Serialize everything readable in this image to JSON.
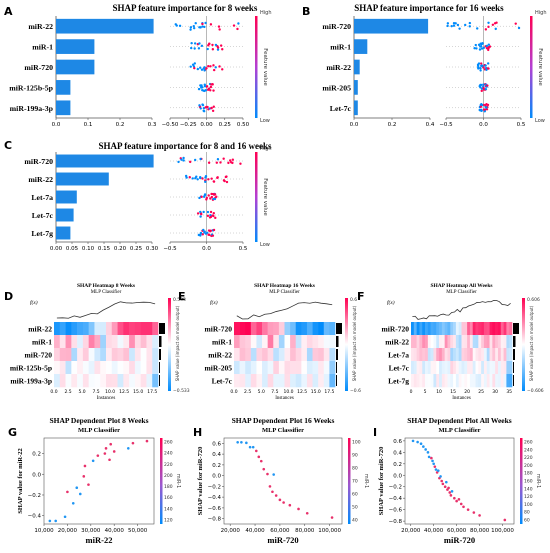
{
  "colors": {
    "bar": "#1E88E5",
    "high": "#FF0052",
    "mid": "#B43FD3",
    "low": "#008BFB",
    "scatter_pink": "#E8316B",
    "scatter_blue": "#2196F3"
  },
  "chart_data": [
    {
      "id": "A",
      "type": "bar",
      "panel_letter": "A",
      "title": "SHAP feature importance for 8 weeks",
      "categories": [
        "miR-22",
        "miR-1",
        "miR-720",
        "miR-125b-5p",
        "miR-199a-3p"
      ],
      "values": [
        0.305,
        0.12,
        0.12,
        0.045,
        0.045
      ],
      "xlim": [
        0,
        0.3
      ],
      "xticks": [
        "0.0",
        "0.1",
        "0.2",
        "0.3"
      ],
      "beeswarm": {
        "xlim": [
          -0.5,
          0.5
        ],
        "xticks": [
          "−0.50",
          "−0.25",
          "0.00",
          "0.25",
          "0.50"
        ]
      },
      "colorbar": {
        "high": "High",
        "low": "Low",
        "label": "Feature value"
      }
    },
    {
      "id": "B",
      "type": "bar",
      "panel_letter": "B",
      "title": "SHAP feature importance for 16 weeks",
      "categories": [
        "miR-720",
        "miR-1",
        "miR-22",
        "miR-205",
        "Let-7c"
      ],
      "values": [
        0.39,
        0.07,
        0.03,
        0.02,
        0.02
      ],
      "xlim": [
        0,
        0.4
      ],
      "xticks": [
        "0.0",
        "0.2",
        "0.4"
      ],
      "beeswarm": {
        "xlim": [
          -0.5,
          0.5
        ],
        "xticks": [
          "−0.5",
          "0.0",
          "0.5"
        ]
      },
      "colorbar": {
        "high": "High",
        "low": "Low",
        "label": "Feature value"
      }
    },
    {
      "id": "C",
      "type": "bar",
      "panel_letter": "C",
      "title": "SHAP feature importance for 8 and 16 weeks",
      "categories": [
        "miR-720",
        "miR-22",
        "Let-7a",
        "Let-7c",
        "Let-7g"
      ],
      "values": [
        0.305,
        0.165,
        0.065,
        0.055,
        0.045
      ],
      "xlim": [
        0,
        0.3
      ],
      "xticks": [
        "0.00",
        "0.05",
        "0.10",
        "0.15",
        "0.20",
        "0.25",
        "0.30"
      ],
      "beeswarm": {
        "xlim": [
          -0.5,
          0.5
        ],
        "xticks": [
          "−0.5",
          "0.0",
          "0.5"
        ]
      },
      "colorbar": {
        "high": "High",
        "low": "Low",
        "label": "Feature value"
      }
    },
    {
      "id": "D",
      "type": "heatmap",
      "panel_letter": "D",
      "title": "SHAP Heatmap 8 Weeks",
      "subtitle": "MLP Classifier",
      "fx_label": "f(x)",
      "rows": [
        "miR-22",
        "miR-1",
        "miR-720",
        "miR-125b-5p",
        "miR-199a-3p"
      ],
      "xlabel": "Instances",
      "xticks": [
        "0.0",
        "2.5",
        "5.0",
        "7.5",
        "10.0",
        "12.5",
        "15.0",
        "17.5"
      ],
      "cbar_max": "0.533",
      "cbar_min": "−0.533",
      "cbar_label": "SHAP value (impact on model output)"
    },
    {
      "id": "E",
      "type": "heatmap",
      "panel_letter": "E",
      "title": "SHAP Heatmap 16 Weeks",
      "subtitle": "MLP Classifier",
      "fx_label": "f(x)",
      "rows": [
        "miR-720",
        "miR-1",
        "miR-22",
        "miR-205",
        "Let-7c"
      ],
      "xlabel": "Instances",
      "xticks": [
        "0.0",
        "2.5",
        "5.0",
        "7.5",
        "10.0",
        "12.5",
        "15.0",
        "17.5"
      ],
      "cbar_max": "0.6",
      "cbar_min": "−0.6",
      "cbar_label": "SHAP value (impact on model output)"
    },
    {
      "id": "F",
      "type": "heatmap",
      "panel_letter": "F",
      "title": "SHAP Heatmap All Weeks",
      "subtitle": "MLP Classifier",
      "fx_label": "f(x)",
      "rows": [
        "miR-720",
        "miR-22",
        "Let-7a",
        "Let-7c",
        "Let-7g"
      ],
      "xlabel": "Instances",
      "xticks": [
        "0",
        "5",
        "10",
        "15",
        "20",
        "25",
        "30",
        "35"
      ],
      "cbar_max": "0.606",
      "cbar_min": "−0.606",
      "cbar_label": "SHAP value (impact on model output)"
    },
    {
      "id": "G",
      "type": "scatter",
      "panel_letter": "G",
      "title": "SHAP Dependent Plot 8 Weeks",
      "subtitle": "MLP Classifier",
      "xlabel": "miR-22",
      "ylabel": "SHAP value for miR-22",
      "xlim": [
        10000,
        57000
      ],
      "ylim": [
        -0.48,
        0.35
      ],
      "xtick_values": [
        10000,
        20000,
        30000,
        40000,
        50000
      ],
      "xticks": [
        "10,000",
        "20,000",
        "30,000",
        "40,000",
        "50,000"
      ],
      "ytick_values": [
        -0.4,
        -0.2,
        0.0,
        0.2
      ],
      "yticks": [
        "−0.4",
        "−0.2",
        "0.0",
        "0.2"
      ],
      "cbar_label": "miR-1",
      "cbar_range": [
        120,
        260
      ],
      "cbar_ticks": [
        "260",
        "240",
        "220",
        "200",
        "180",
        "160",
        "140",
        "120"
      ],
      "points": [
        {
          "x": 12500,
          "y": -0.45,
          "c": "blue"
        },
        {
          "x": 15000,
          "y": -0.45,
          "c": "blue"
        },
        {
          "x": 19000,
          "y": -0.41,
          "c": "blue"
        },
        {
          "x": 20000,
          "y": -0.17,
          "c": "pink"
        },
        {
          "x": 22500,
          "y": -0.28,
          "c": "blue"
        },
        {
          "x": 24000,
          "y": -0.13,
          "c": "blue"
        },
        {
          "x": 25500,
          "y": -0.19,
          "c": "blue"
        },
        {
          "x": 27000,
          "y": -0.02,
          "c": "pink"
        },
        {
          "x": 27500,
          "y": 0.08,
          "c": "pink"
        },
        {
          "x": 29000,
          "y": -0.1,
          "c": "pink"
        },
        {
          "x": 31000,
          "y": 0.13,
          "c": "blue"
        },
        {
          "x": 33000,
          "y": 0.18,
          "c": "pink"
        },
        {
          "x": 36000,
          "y": 0.2,
          "c": "pink"
        },
        {
          "x": 36500,
          "y": 0.25,
          "c": "pink"
        },
        {
          "x": 38000,
          "y": 0.14,
          "c": "pink"
        },
        {
          "x": 38500,
          "y": 0.29,
          "c": "pink"
        },
        {
          "x": 40000,
          "y": 0.22,
          "c": "pink"
        },
        {
          "x": 46000,
          "y": 0.25,
          "c": "blue"
        },
        {
          "x": 48000,
          "y": 0.3,
          "c": "pink"
        },
        {
          "x": 54000,
          "y": 0.32,
          "c": "pink"
        }
      ]
    },
    {
      "id": "H",
      "type": "scatter",
      "panel_letter": "H",
      "title": "SHAP Dependent Plot 16 Weeks",
      "subtitle": "MLP Classifier",
      "xlabel": "miR-720",
      "ylabel": "SHAP value for miR-720",
      "xlim": [
        15000,
        110000
      ],
      "ylim": [
        -0.9,
        0.7
      ],
      "xtick_values": [
        20000,
        40000,
        60000,
        80000,
        100000
      ],
      "xticks": [
        "20,000",
        "40,000",
        "60,000",
        "80,000",
        "100,000"
      ],
      "ytick_values": [
        -0.8,
        -0.6,
        -0.4,
        -0.2,
        0.0,
        0.2,
        0.4,
        0.6
      ],
      "yticks": [
        "−0.8",
        "−0.6",
        "−0.4",
        "−0.2",
        "0.0",
        "0.2",
        "0.4",
        "0.6"
      ],
      "cbar_label": "miR-1",
      "cbar_range": [
        40,
        100
      ],
      "cbar_ticks": [
        "100",
        "90",
        "80",
        "70",
        "60",
        "50",
        "40"
      ],
      "points": [
        {
          "x": 26000,
          "y": 0.62,
          "c": "blue"
        },
        {
          "x": 29000,
          "y": 0.62,
          "c": "blue"
        },
        {
          "x": 33000,
          "y": 0.61,
          "c": "blue"
        },
        {
          "x": 36000,
          "y": 0.53,
          "c": "blue"
        },
        {
          "x": 38500,
          "y": 0.53,
          "c": "blue"
        },
        {
          "x": 41000,
          "y": 0.46,
          "c": "pink"
        },
        {
          "x": 43000,
          "y": 0.35,
          "c": "pink"
        },
        {
          "x": 45000,
          "y": 0.27,
          "c": "pink"
        },
        {
          "x": 47000,
          "y": 0.12,
          "c": "pink"
        },
        {
          "x": 50000,
          "y": 0.03,
          "c": "pink"
        },
        {
          "x": 52000,
          "y": -0.2,
          "c": "pink"
        },
        {
          "x": 54000,
          "y": -0.3,
          "c": "pink"
        },
        {
          "x": 55000,
          "y": 0.02,
          "c": "blue"
        },
        {
          "x": 57000,
          "y": -0.37,
          "c": "pink"
        },
        {
          "x": 60000,
          "y": -0.45,
          "c": "pink"
        },
        {
          "x": 63000,
          "y": -0.5,
          "c": "pink"
        },
        {
          "x": 68000,
          "y": -0.55,
          "c": "pink"
        },
        {
          "x": 75000,
          "y": -0.62,
          "c": "pink"
        },
        {
          "x": 82000,
          "y": -0.7,
          "c": "pink"
        },
        {
          "x": 102000,
          "y": -0.78,
          "c": "pink"
        }
      ]
    },
    {
      "id": "I",
      "type": "scatter",
      "panel_letter": "I",
      "title": "SHAP Dependent Plot All Weeks",
      "subtitle": "MLP Classifier",
      "xlabel": "miR-720",
      "ylabel": "SHAP value for miR-720",
      "xlim": [
        15000,
        110000
      ],
      "ylim": [
        -0.85,
        0.65
      ],
      "xtick_values": [
        20000,
        40000,
        60000,
        80000,
        100000
      ],
      "xticks": [
        "20,000",
        "40,000",
        "60,000",
        "80,000",
        "100,000"
      ],
      "ytick_values": [
        -0.8,
        -0.6,
        -0.4,
        -0.2,
        0.0,
        0.2,
        0.4,
        0.6
      ],
      "yticks": [
        "−0.8",
        "−0.6",
        "−0.4",
        "−0.2",
        "0.0",
        "0.2",
        "0.4",
        "0.6"
      ],
      "cbar_label": "miR-1",
      "cbar_range": [
        40,
        260
      ],
      "cbar_ticks": [
        "260",
        "240",
        "220",
        "200",
        "180",
        "160",
        "140",
        "120",
        "100",
        "80",
        "60"
      ],
      "points": [
        {
          "x": 22000,
          "y": 0.6,
          "c": "blue"
        },
        {
          "x": 26000,
          "y": 0.58,
          "c": "blue"
        },
        {
          "x": 29000,
          "y": 0.55,
          "c": "blue"
        },
        {
          "x": 31000,
          "y": 0.5,
          "c": "blue"
        },
        {
          "x": 33000,
          "y": 0.45,
          "c": "blue"
        },
        {
          "x": 35000,
          "y": 0.4,
          "c": "blue"
        },
        {
          "x": 36000,
          "y": 0.32,
          "c": "blue"
        },
        {
          "x": 38000,
          "y": 0.3,
          "c": "pink"
        },
        {
          "x": 39000,
          "y": 0.25,
          "c": "blue"
        },
        {
          "x": 40000,
          "y": 0.2,
          "c": "blue"
        },
        {
          "x": 41000,
          "y": 0.15,
          "c": "pink"
        },
        {
          "x": 42000,
          "y": 0.1,
          "c": "blue"
        },
        {
          "x": 43000,
          "y": 0.05,
          "c": "pink"
        },
        {
          "x": 44000,
          "y": 0.08,
          "c": "blue"
        },
        {
          "x": 45000,
          "y": -0.05,
          "c": "pink"
        },
        {
          "x": 46000,
          "y": -0.02,
          "c": "blue"
        },
        {
          "x": 47000,
          "y": -0.1,
          "c": "pink"
        },
        {
          "x": 48000,
          "y": -0.15,
          "c": "pink"
        },
        {
          "x": 50000,
          "y": -0.2,
          "c": "pink"
        },
        {
          "x": 51000,
          "y": -0.12,
          "c": "blue"
        },
        {
          "x": 52000,
          "y": -0.25,
          "c": "pink"
        },
        {
          "x": 53000,
          "y": -0.22,
          "c": "pink"
        },
        {
          "x": 54000,
          "y": -0.3,
          "c": "pink"
        },
        {
          "x": 55000,
          "y": -0.35,
          "c": "pink"
        },
        {
          "x": 56000,
          "y": -0.28,
          "c": "blue"
        },
        {
          "x": 58000,
          "y": -0.4,
          "c": "pink"
        },
        {
          "x": 60000,
          "y": -0.45,
          "c": "pink"
        },
        {
          "x": 62000,
          "y": -0.42,
          "c": "pink"
        },
        {
          "x": 64000,
          "y": -0.5,
          "c": "pink"
        },
        {
          "x": 66000,
          "y": -0.55,
          "c": "pink"
        },
        {
          "x": 70000,
          "y": -0.6,
          "c": "pink"
        },
        {
          "x": 75000,
          "y": -0.65,
          "c": "pink"
        },
        {
          "x": 80000,
          "y": -0.7,
          "c": "pink"
        },
        {
          "x": 102000,
          "y": -0.78,
          "c": "pink"
        }
      ]
    }
  ]
}
